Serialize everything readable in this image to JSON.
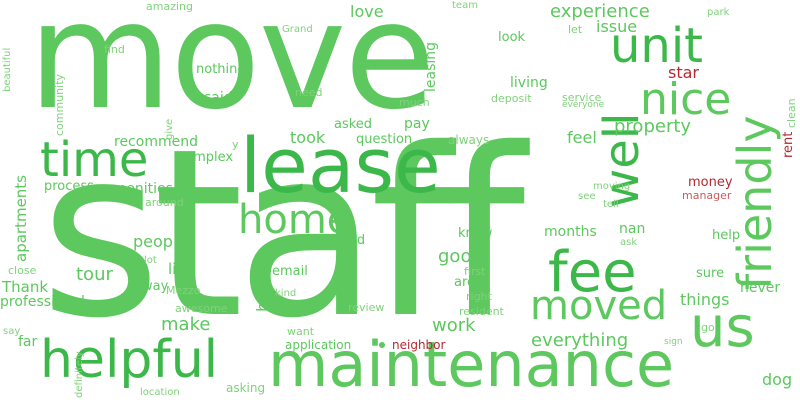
{
  "words": {
    "staff": "staff",
    "move": "move",
    "lease": "lease",
    "maintenance": "maintenance",
    "helpful": "helpful",
    "unit": "unit",
    "time": "time",
    "fee": "fee",
    "well": "well",
    "friendly": "friendly",
    "us": "us",
    "nice": "nice",
    "home": "home",
    "moved": "moved",
    "experience": "experience",
    "property": "property",
    "love": "love",
    "issue": "issue",
    "star": "star",
    "everything": "everything",
    "dog": "dog",
    "back": "back",
    "good": "good",
    "tour": "tour",
    "make": "make",
    "work": "work",
    "things": "things",
    "people": "people",
    "live": "live",
    "months": "months",
    "apartments": "apartments",
    "recommend": "recommend",
    "took": "took",
    "feel": "feel",
    "pay": "pay",
    "said": "said",
    "nothing": "nothing",
    "living": "living",
    "asked": "asked",
    "question": "question",
    "process": "process",
    "amenities": "amenities",
    "complex": "complex",
    "leasing": "leasing",
    "Thank": "Thank",
    "professional": "professional",
    "rent": "rent",
    "money": "money",
    "manager": "manager",
    "clean": "clean",
    "never": "never",
    "help": "help",
    "sure": "sure",
    "know": "know",
    "nan": "nan",
    "area": "area",
    "first": "first",
    "right": "right",
    "resident": "resident",
    "review": "review",
    "lived": "lived",
    "email": "email",
    "application": "application",
    "neighbor": "neighbor",
    "far": "far",
    "definitely": "definitely",
    "location": "location",
    "asking": "asking",
    "want": "want",
    "kind": "kind",
    "awesome": "awesome",
    "Mezzo": "Mezzo",
    "way": "way",
    "lot": "lot",
    "close": "close",
    "say": "say",
    "around": "around",
    "y": "y",
    "always": "always",
    "much": "much",
    "need": "need",
    "deposit": "deposit",
    "service": "service",
    "everyone": "everyone",
    "look": "look",
    "let": "let",
    "team": "team",
    "park": "park",
    "Grand": "Grand",
    "amazing": "amazing",
    "find": "find",
    "beautiful": "beautiful",
    "community": "community",
    "give": "give",
    "moving": "moving",
    "see": "see",
    "tell": "tell",
    "ask": "ask",
    "go": "go",
    "sign": "sign"
  }
}
